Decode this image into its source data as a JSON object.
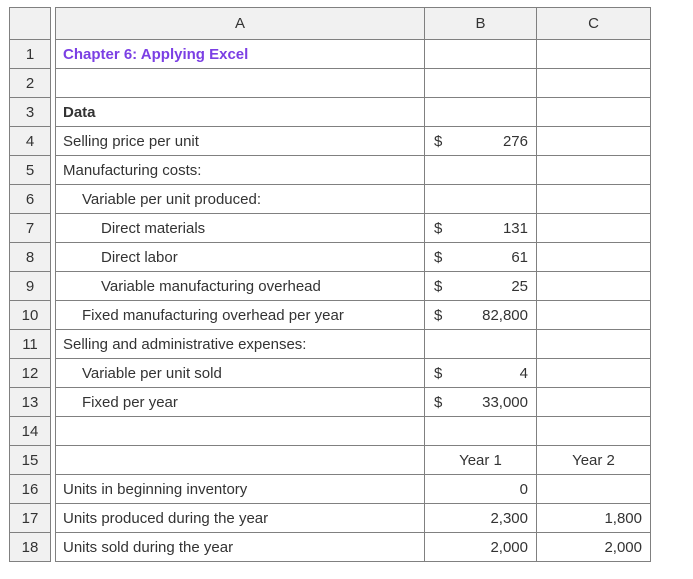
{
  "colors": {
    "title_text": "#7b3fe4",
    "header_bg": "#f1f1f1",
    "border": "#808080",
    "body_text": "#333333"
  },
  "worksheet": {
    "columns": [
      "A",
      "B",
      "C"
    ],
    "corner_label": "",
    "row_numbers": [
      "1",
      "2",
      "3",
      "4",
      "5",
      "6",
      "7",
      "8",
      "9",
      "10",
      "11",
      "12",
      "13",
      "14",
      "15",
      "16",
      "17",
      "18"
    ],
    "rows": [
      {
        "num": "1",
        "a": {
          "kind": "text",
          "text": "Chapter 6: Applying Excel",
          "indent": 0,
          "bold": true,
          "title": true
        },
        "b": {
          "kind": "empty"
        },
        "c": {
          "kind": "empty"
        }
      },
      {
        "num": "2",
        "a": {
          "kind": "empty"
        },
        "b": {
          "kind": "empty"
        },
        "c": {
          "kind": "empty"
        }
      },
      {
        "num": "3",
        "a": {
          "kind": "text",
          "text": "Data",
          "indent": 0,
          "bold": true
        },
        "b": {
          "kind": "empty"
        },
        "c": {
          "kind": "empty"
        }
      },
      {
        "num": "4",
        "a": {
          "kind": "text",
          "text": "Selling price per unit",
          "indent": 0
        },
        "b": {
          "kind": "currency",
          "symbol": "$",
          "value": "276"
        },
        "c": {
          "kind": "empty"
        }
      },
      {
        "num": "5",
        "a": {
          "kind": "text",
          "text": "Manufacturing costs:",
          "indent": 0
        },
        "b": {
          "kind": "empty"
        },
        "c": {
          "kind": "empty"
        }
      },
      {
        "num": "6",
        "a": {
          "kind": "text",
          "text": "Variable per unit produced:",
          "indent": 1
        },
        "b": {
          "kind": "empty"
        },
        "c": {
          "kind": "empty"
        }
      },
      {
        "num": "7",
        "a": {
          "kind": "text",
          "text": "Direct materials",
          "indent": 2
        },
        "b": {
          "kind": "currency",
          "symbol": "$",
          "value": "131"
        },
        "c": {
          "kind": "empty"
        }
      },
      {
        "num": "8",
        "a": {
          "kind": "text",
          "text": "Direct labor",
          "indent": 2
        },
        "b": {
          "kind": "currency",
          "symbol": "$",
          "value": "61"
        },
        "c": {
          "kind": "empty"
        }
      },
      {
        "num": "9",
        "a": {
          "kind": "text",
          "text": "Variable manufacturing overhead",
          "indent": 2
        },
        "b": {
          "kind": "currency",
          "symbol": "$",
          "value": "25"
        },
        "c": {
          "kind": "empty"
        }
      },
      {
        "num": "10",
        "a": {
          "kind": "text",
          "text": "Fixed manufacturing overhead per year",
          "indent": 1
        },
        "b": {
          "kind": "currency",
          "symbol": "$",
          "value": "82,800"
        },
        "c": {
          "kind": "empty"
        }
      },
      {
        "num": "11",
        "a": {
          "kind": "text",
          "text": "Selling and administrative expenses:",
          "indent": 0
        },
        "b": {
          "kind": "empty"
        },
        "c": {
          "kind": "empty"
        }
      },
      {
        "num": "12",
        "a": {
          "kind": "text",
          "text": "Variable per unit sold",
          "indent": 1
        },
        "b": {
          "kind": "currency",
          "symbol": "$",
          "value": "4"
        },
        "c": {
          "kind": "empty"
        }
      },
      {
        "num": "13",
        "a": {
          "kind": "text",
          "text": "Fixed per year",
          "indent": 1
        },
        "b": {
          "kind": "currency",
          "symbol": "$",
          "value": "33,000"
        },
        "c": {
          "kind": "empty"
        }
      },
      {
        "num": "14",
        "a": {
          "kind": "empty"
        },
        "b": {
          "kind": "empty"
        },
        "c": {
          "kind": "empty"
        }
      },
      {
        "num": "15",
        "a": {
          "kind": "empty"
        },
        "b": {
          "kind": "center",
          "value": "Year 1"
        },
        "c": {
          "kind": "center",
          "value": "Year 2"
        }
      },
      {
        "num": "16",
        "a": {
          "kind": "text",
          "text": "Units in beginning inventory",
          "indent": 0
        },
        "b": {
          "kind": "number",
          "value": "0"
        },
        "c": {
          "kind": "empty"
        }
      },
      {
        "num": "17",
        "a": {
          "kind": "text",
          "text": "Units produced during the year",
          "indent": 0
        },
        "b": {
          "kind": "number",
          "value": "2,300"
        },
        "c": {
          "kind": "number",
          "value": "1,800"
        }
      },
      {
        "num": "18",
        "a": {
          "kind": "text",
          "text": "Units sold during the year",
          "indent": 0
        },
        "b": {
          "kind": "number",
          "value": "2,000"
        },
        "c": {
          "kind": "number",
          "value": "2,000"
        }
      }
    ]
  }
}
